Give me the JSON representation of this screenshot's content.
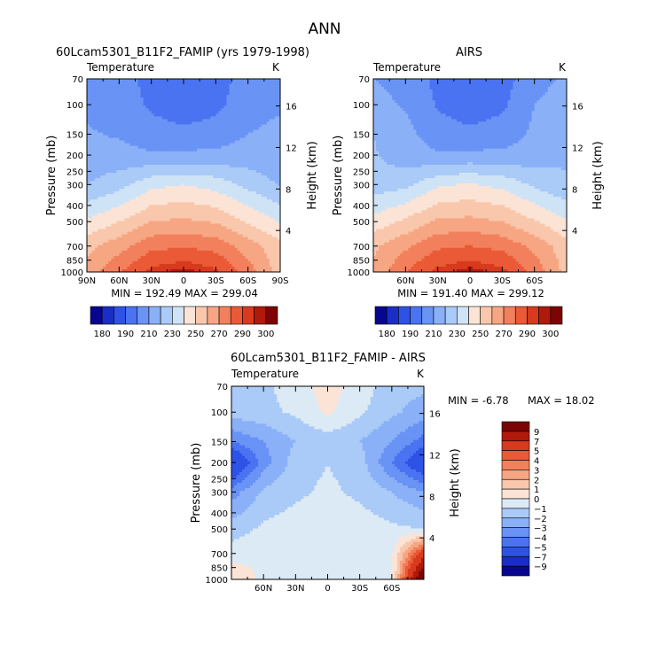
{
  "title": "ANN",
  "colors": {
    "temp_scale": [
      "#08068f",
      "#1a2ec5",
      "#2f52e6",
      "#4a73f2",
      "#6993f5",
      "#8ab0f8",
      "#aacaf7",
      "#cfe3f6",
      "#fbe4d6",
      "#f9c7ac",
      "#f7a683",
      "#f2805c",
      "#ea5a36",
      "#d83a1e",
      "#b01a0a",
      "#7c0404"
    ],
    "diff_scale": [
      "#08068f",
      "#1a2ec5",
      "#2f52e6",
      "#4a73f2",
      "#6993f5",
      "#8ab0f8",
      "#aacaf7",
      "#dceaf6",
      "#fbe4d6",
      "#f9c7ac",
      "#f7a683",
      "#f2805c",
      "#ea5a36",
      "#d83a1e",
      "#b01a0a",
      "#7c0404"
    ]
  },
  "chart_data": [
    {
      "type": "heatmap",
      "id": "model",
      "title": "60Lcam5301_B11F2_FAMIP (yrs 1979-1998)",
      "subtitle": "Temperature",
      "units": "K",
      "ylabel": "Pressure (mb)",
      "y2label": "Height (km)",
      "y_ticks": [
        "70",
        "100",
        "150",
        "200",
        "250",
        "300",
        "400",
        "500",
        "700",
        "850",
        "1000"
      ],
      "y_tick_values": [
        70,
        100,
        150,
        200,
        250,
        300,
        400,
        500,
        700,
        850,
        1000
      ],
      "height_ticks": [
        "16",
        "12",
        "8",
        "4"
      ],
      "height_tick_values": [
        16,
        12,
        8,
        4
      ],
      "x_ticks": [
        "90N",
        "60N",
        "30N",
        "0",
        "30S",
        "60S",
        "90S"
      ],
      "x_tick_values": [
        90,
        60,
        30,
        0,
        -30,
        -60,
        -90
      ],
      "xlim": [
        90,
        -90
      ],
      "ylim": [
        1000,
        70
      ],
      "stats": "MIN = 192.49   MAX = 299.04",
      "min": 192.49,
      "max": 299.04,
      "lat": [
        90,
        60,
        30,
        0,
        -30,
        -60,
        -90
      ],
      "levels": [
        70,
        100,
        150,
        200,
        300,
        500,
        700,
        1000
      ],
      "field": [
        [
          205,
          204,
          197,
          194,
          196,
          204,
          206
        ],
        [
          208,
          206,
          198,
          193,
          197,
          207,
          209
        ],
        [
          211,
          209,
          205,
          203,
          205,
          210,
          212
        ],
        [
          214,
          213,
          211,
          212,
          212,
          214,
          213
        ],
        [
          220,
          226,
          237,
          240,
          236,
          227,
          219
        ],
        [
          241,
          250,
          260,
          262,
          259,
          249,
          239
        ],
        [
          257,
          266,
          277,
          279,
          276,
          265,
          253
        ],
        [
          264,
          279,
          293,
          298,
          292,
          275,
          255
        ]
      ]
    },
    {
      "type": "heatmap",
      "id": "obs",
      "title": "AIRS",
      "subtitle": "Temperature",
      "units": "K",
      "ylabel": "Pressure (mb)",
      "y2label": "Height (km)",
      "y_ticks": [
        "70",
        "100",
        "150",
        "200",
        "250",
        "300",
        "400",
        "500",
        "700",
        "850",
        "1000"
      ],
      "y_tick_values": [
        70,
        100,
        150,
        200,
        250,
        300,
        400,
        500,
        700,
        850,
        1000
      ],
      "height_ticks": [
        "16",
        "12",
        "8",
        "4"
      ],
      "height_tick_values": [
        16,
        12,
        8,
        4
      ],
      "x_ticks": [
        "60N",
        "30N",
        "0",
        "30S",
        "60S"
      ],
      "x_tick_values": [
        60,
        30,
        0,
        -30,
        -60
      ],
      "xlim": [
        90,
        -90
      ],
      "ylim": [
        1000,
        70
      ],
      "stats": "MIN = 191.40   MAX = 299.12",
      "min": 191.4,
      "max": 299.12,
      "lat": [
        90,
        60,
        30,
        0,
        -30,
        -60,
        -90
      ],
      "levels": [
        70,
        100,
        150,
        200,
        300,
        500,
        700,
        1000
      ],
      "field": [
        [
          210,
          207,
          197,
          193,
          196,
          206,
          212
        ],
        [
          213,
          209,
          199,
          193,
          198,
          210,
          215
        ],
        [
          220,
          213,
          205,
          203,
          205,
          212,
          220
        ],
        [
          221,
          214,
          211,
          212,
          212,
          214,
          219
        ],
        [
          224,
          227,
          238,
          241,
          237,
          228,
          221
        ],
        [
          244,
          252,
          262,
          263,
          260,
          251,
          241
        ],
        [
          258,
          268,
          278,
          280,
          277,
          267,
          254
        ],
        [
          262,
          280,
          293,
          298,
          293,
          277,
          256
        ]
      ]
    },
    {
      "type": "heatmap",
      "id": "diff",
      "title": "60Lcam5301_B11F2_FAMIP - AIRS",
      "subtitle": "Temperature",
      "units": "K",
      "ylabel": "Pressure (mb)",
      "y2label": "Height (km)",
      "y_ticks": [
        "70",
        "100",
        "150",
        "200",
        "250",
        "300",
        "400",
        "500",
        "700",
        "850",
        "1000"
      ],
      "y_tick_values": [
        70,
        100,
        150,
        200,
        250,
        300,
        400,
        500,
        700,
        850,
        1000
      ],
      "height_ticks": [
        "16",
        "12",
        "8",
        "4"
      ],
      "height_tick_values": [
        16,
        12,
        8,
        4
      ],
      "x_ticks": [
        "60N",
        "30N",
        "0",
        "30S",
        "60S"
      ],
      "x_tick_values": [
        60,
        30,
        0,
        -30,
        -60
      ],
      "xlim": [
        90,
        -90
      ],
      "ylim": [
        1000,
        70
      ],
      "stats_min": "MIN =  -6.78",
      "stats_max": "MAX =  18.02",
      "min": -6.78,
      "max": 18.02,
      "lat": [
        90,
        60,
        30,
        0,
        -30,
        -60,
        -90
      ],
      "levels": [
        70,
        100,
        150,
        200,
        300,
        500,
        700,
        1000
      ],
      "field": [
        [
          -1.5,
          -1.2,
          -0.5,
          0.5,
          -0.5,
          -1.5,
          -1.8
        ],
        [
          -1.5,
          -1.3,
          -0.8,
          0.2,
          -0.8,
          -1.8,
          -2.5
        ],
        [
          -4,
          -3,
          -2,
          -1.5,
          -2,
          -3,
          -4.5
        ],
        [
          -7,
          -3.5,
          -1.5,
          -1,
          -1.5,
          -4,
          -6.5
        ],
        [
          -3.5,
          -1.8,
          -1.2,
          -0.8,
          -1.2,
          -2,
          -3
        ],
        [
          -1.5,
          -0.8,
          -0.5,
          -0.5,
          -0.5,
          -0.8,
          -1
        ],
        [
          -0.5,
          -0.2,
          -0.3,
          -0.3,
          -0.3,
          -0.2,
          6
        ],
        [
          1,
          -0.3,
          -0.3,
          -0.3,
          -0.3,
          -0.3,
          12
        ]
      ]
    }
  ],
  "colorbars": [
    {
      "id": "temp",
      "labels": [
        "180",
        "190",
        "210",
        "230",
        "250",
        "270",
        "290",
        "300"
      ]
    },
    {
      "id": "diff",
      "labels": [
        "9",
        "7",
        "5",
        "4",
        "3",
        "2",
        "1",
        "0",
        "−1",
        "−2",
        "−3",
        "−4",
        "−5",
        "−7",
        "−9"
      ]
    }
  ]
}
